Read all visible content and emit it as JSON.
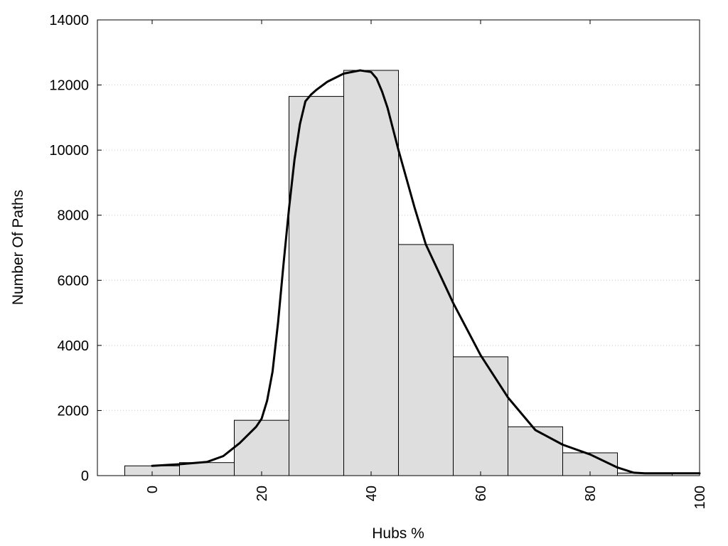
{
  "chart_data": {
    "type": "bar",
    "title": "",
    "xlabel": "Hubs %",
    "ylabel": "Number Of Paths",
    "xlim": [
      -10,
      100
    ],
    "ylim": [
      0,
      14000
    ],
    "x_ticks": [
      "0",
      "20",
      "40",
      "60",
      "80",
      "100"
    ],
    "x_tick_values": [
      0,
      20,
      40,
      60,
      80,
      100
    ],
    "y_ticks": [
      "0",
      "2000",
      "4000",
      "6000",
      "8000",
      "10000",
      "12000",
      "14000"
    ],
    "y_tick_values": [
      0,
      2000,
      4000,
      6000,
      8000,
      10000,
      12000,
      14000
    ],
    "grid": "horizontal-dotted",
    "bin_width": 10,
    "bins": [
      {
        "x": 0,
        "value": 300
      },
      {
        "x": 10,
        "value": 400
      },
      {
        "x": 20,
        "value": 1700
      },
      {
        "x": 30,
        "value": 11650
      },
      {
        "x": 40,
        "value": 12450
      },
      {
        "x": 50,
        "value": 7100
      },
      {
        "x": 60,
        "value": 3650
      },
      {
        "x": 70,
        "value": 1500
      },
      {
        "x": 80,
        "value": 700
      },
      {
        "x": 90,
        "value": 80
      }
    ],
    "curve": {
      "type": "line",
      "x": [
        0,
        5,
        10,
        13,
        16,
        19,
        20,
        21,
        22,
        23,
        24,
        25,
        26,
        27,
        28,
        29,
        30,
        32,
        35,
        38,
        40,
        41,
        42,
        43,
        45,
        48,
        50,
        55,
        60,
        65,
        70,
        75,
        80,
        85,
        88,
        90,
        95,
        100
      ],
      "y": [
        300,
        350,
        420,
        600,
        1000,
        1500,
        1750,
        2300,
        3200,
        4700,
        6500,
        8200,
        9700,
        10800,
        11500,
        11700,
        11850,
        12100,
        12350,
        12450,
        12400,
        12200,
        11800,
        11300,
        10000,
        8200,
        7100,
        5300,
        3700,
        2400,
        1400,
        950,
        650,
        250,
        90,
        70,
        70,
        70
      ]
    },
    "colors": {
      "bar_fill": "#dedede",
      "bar_stroke": "#000000",
      "curve": "#000000",
      "grid": "#cccccc"
    }
  }
}
